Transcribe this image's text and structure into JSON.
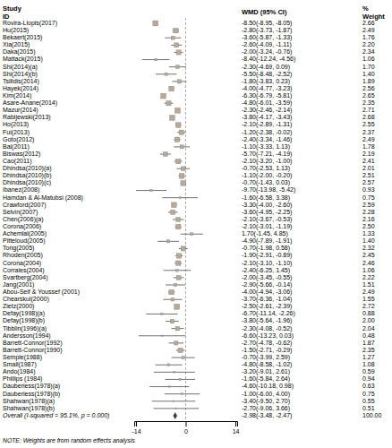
{
  "chart_data": {
    "type": "forest",
    "column_headers": [
      "Study\nID",
      "WMD (95% CI)",
      "%\nWeight"
    ],
    "categories": [
      "Rovira-Llopis(2017)",
      "Hu(2015)",
      "Bekaert(2015)",
      "Xia(2015)",
      "Daka(2015)",
      "Mattack(2015)",
      "Shi(2014)(a)",
      "Shi(2014)(b)",
      "Tsilidis(2014)",
      "Hayek(2014)",
      "Kim(2014)",
      "Asare-Anane(2014)",
      "Mazur(2014)",
      "Rabijewski(2013)",
      "Ho(2013)",
      "Fui(2013)",
      "Goto(2012)",
      "Bai(2011)",
      "Biswas(2012)",
      "Cao(2011)",
      "Dhindsa(2010)(a)",
      "Dhindsa(2010)(b)",
      "Dhindsa(2010)(c)",
      "Ibanez(2008)",
      "Hamdan & Al-Matubsi (2008)",
      "Crawford(2007)",
      "Selvin(2007)",
      "Chen(2006)(a)",
      "Corona(2006)",
      "Achemlal(2005)",
      "Pitteloud(2005)",
      "Tong(2005)",
      "Rhoden(2005)",
      "Corona(2004)",
      "Corrales(2004)",
      "Svartberg(2004)",
      "Jang(2001)",
      "Abou-Seif & Youssef (2001)",
      "Chearskul(2000)",
      "Zietz(2000)",
      "Defay(1998)(a)",
      "Defay(1998)(b)",
      "Tibblin(1996)(a)",
      "Andersson(1994)",
      "Barrett-Connor(1992)",
      "Barrett-Connor(1990)",
      "Semple(1988)",
      "Small(1987)",
      "Ando(1984)",
      "Phillips (1984)",
      "Dauberiess(1978)(a)",
      "Dauberiess(1978)(b)",
      "Shahwan(1978)(a)",
      "Shahwan(1978)(b)"
    ],
    "values": [
      -8.5,
      -2.8,
      -3.6,
      -2.6,
      -2.0,
      -8.4,
      -2.3,
      -5.5,
      -1.8,
      -4.0,
      -6.3,
      -4.8,
      -2.3,
      -3.8,
      -2.1,
      -1.2,
      -2.4,
      -1.1,
      -5.7,
      -2.1,
      -0.7,
      -1.1,
      -0.7,
      -9.7,
      -1.6,
      -3.3,
      -3.6,
      -2.1,
      -2.1,
      1.7,
      -4.9,
      -0.7,
      -1.9,
      -2.1,
      -2.4,
      -2.0,
      -2.9,
      -4.0,
      -3.7,
      -2.5,
      -6.7,
      -3.8,
      -2.3,
      -6.6,
      -2.7,
      -1.5,
      -0.7,
      -4.8,
      -3.2,
      -1.6,
      -4.6,
      -1.0,
      -3.4,
      -2.7
    ],
    "ci_low": [
      -8.95,
      -3.73,
      -5.87,
      -4.09,
      -3.24,
      -12.24,
      -4.69,
      -8.48,
      -3.83,
      -4.77,
      -6.79,
      -6.01,
      -2.46,
      -4.17,
      -2.89,
      -2.38,
      -3.34,
      -3.33,
      -7.21,
      -3.2,
      -2.53,
      -2.0,
      -1.43,
      -13.98,
      -6.58,
      -4.0,
      -4.95,
      -3.67,
      -3.01,
      -1.45,
      -7.89,
      -1.98,
      -2.91,
      -3.1,
      -6.25,
      -3.45,
      -5.66,
      -4.94,
      -6.36,
      -2.61,
      -11.14,
      -5.64,
      -4.08,
      -13.23,
      -4.78,
      -2.71,
      -3.99,
      -8.58,
      -9.01,
      -5.84,
      -10.18,
      -6.0,
      -9.5,
      -9.06
    ],
    "ci_high": [
      -8.05,
      -1.87,
      -1.33,
      -1.11,
      -0.76,
      -4.56,
      0.09,
      -2.52,
      0.23,
      -3.23,
      -5.81,
      -3.59,
      -2.14,
      -3.43,
      -1.31,
      -0.02,
      -1.46,
      1.13,
      -4.19,
      -1.0,
      1.13,
      -0.2,
      0.03,
      -5.42,
      3.38,
      -2.6,
      -2.25,
      -0.53,
      -1.19,
      4.85,
      -1.91,
      0.58,
      -0.89,
      -1.1,
      1.45,
      -0.55,
      -0.14,
      -3.06,
      -1.04,
      -2.39,
      -2.26,
      -1.96,
      -0.52,
      0.03,
      -0.62,
      -0.29,
      2.59,
      -1.02,
      2.61,
      2.64,
      0.98,
      4.0,
      2.7,
      3.66
    ],
    "value_labels": [
      "-8.50(-8.95, -8.05)",
      "-2.80(-3.73, -1.87)",
      "-3.60(-5.87, -1.33)",
      "-2.60(-4.09, -1.11)",
      "-2.00(-3.24, -0.76)",
      "-8.40(-12.24, -4.56)",
      "-2.30(-4.69, 0.09)",
      "-5.50(-8.48, -2.52)",
      "-1.80(-3.83, 0.23)",
      "-4.00(-4.77, -3.23)",
      "-6.30(-6.79, -5.81)",
      "-4.80(-6.01, -3.59)",
      "-2.30(-2.46, -2.14)",
      "-3.80(-4.17, -3.43)",
      "-2.10(-2.89, -1.31)",
      "-1.20(-2.38, -0.02)",
      "-2.40(-3.34, -1.46)",
      "-1.10(-3.33, 1.13)",
      "-5.70(-7.21, -4.19)",
      "-2.10(-3.20, -1.00)",
      "-0.70(-2.53, 1.13)",
      "-1.10(-2.00, -0.20)",
      "-0.70(-1.43, 0.03)",
      "-9.70(-13.98, -5.42)",
      "-1.60(-6.58, 3.38)",
      "-3.30(-4.00, -2.60)",
      "-3.60(-4.95, -2.25)",
      "-2.10(-3.67, -0.53)",
      "-2.10(-3.01, -1.19)",
      "1.70(-1.45, 4.85)",
      "-4.90(-7.89, -1.91)",
      "-0.70(-1.98, 0.58)",
      "-1.90(-2.91, -0.89)",
      "-2.10(-3.10, -1.10)",
      "-2.40(-6.25, 1.45)",
      "-2.00(-3.45, -0.55)",
      "-2.90(-5.66, -0.14)",
      "-4.00(-4.94, -3.06)",
      "-3.70(-6.36, -1.04)",
      "-2.50(-2.61, -2.39)",
      "-6.70(-11.14, -2.26)",
      "-3.80(-5.64, -1.96)",
      "-2.30(-4.08, -0.52)",
      "-6.60(-13.23, 0.03)",
      "-2.70(-4.78, -0.62)",
      "-1.50(-2.71, -0.29)",
      "-0.70(-3.99, 2.59)",
      "-4.80(-8.58, -1.02)",
      "-3.20(-9.01, 2.61)",
      "-1.60(-5.84, 2.64)",
      "-4.60(-10.18, 0.98)",
      "-1.00(-6.00, 4.00)",
      "-3.40(-9.50, 2.70)",
      "-2.70(-9.06, 3.66)"
    ],
    "weights": [
      2.66,
      2.49,
      1.76,
      2.2,
      2.34,
      1.06,
      1.7,
      1.4,
      1.89,
      2.56,
      2.65,
      2.35,
      2.71,
      2.68,
      2.55,
      2.37,
      2.49,
      1.78,
      2.19,
      2.41,
      2.01,
      2.51,
      2.57,
      0.93,
      0.75,
      2.59,
      2.28,
      2.16,
      2.5,
      1.33,
      1.4,
      2.32,
      2.45,
      2.46,
      1.06,
      2.22,
      1.51,
      2.49,
      1.55,
      2.72,
      0.88,
      2.0,
      2.04,
      0.48,
      1.87,
      2.35,
      1.27,
      1.08,
      0.59,
      0.94,
      0.63,
      0.75,
      0.55,
      0.51
    ],
    "weight_labels": [
      "2.66",
      "2.49",
      "1.76",
      "2.20",
      "2.34",
      "1.06",
      "1.70",
      "1.40",
      "1.89",
      "2.56",
      "2.65",
      "2.35",
      "2.71",
      "2.68",
      "2.55",
      "2.37",
      "2.49",
      "1.78",
      "2.19",
      "2.41",
      "2.01",
      "2.51",
      "2.57",
      "0.93",
      "0.75",
      "2.59",
      "2.28",
      "2.16",
      "2.50",
      "1.33",
      "1.40",
      "2.32",
      "2.45",
      "2.46",
      "1.06",
      "2.22",
      "1.51",
      "2.49",
      "1.55",
      "2.72",
      "0.88",
      "2.00",
      "2.04",
      "0.48",
      "1.87",
      "2.35",
      "1.27",
      "1.08",
      "0.59",
      "0.94",
      "0.63",
      "0.75",
      "0.55",
      "0.51"
    ],
    "overall": {
      "label": "Overall  (I-squared = 95.1%, p = 0.000)",
      "value": -2.98,
      "ci_low": -3.48,
      "ci_high": -2.47,
      "value_label": "-2.98(-3.48, -2.47)",
      "weight_label": "100.00",
      "color": "#3d2b5e"
    },
    "reference_line": 0,
    "note": "NOTE: Weights are from random effects analysis",
    "xlim": [
      -14.5,
      14.5
    ],
    "xticks": [
      -14,
      0,
      14
    ],
    "color": "#b8a898"
  }
}
